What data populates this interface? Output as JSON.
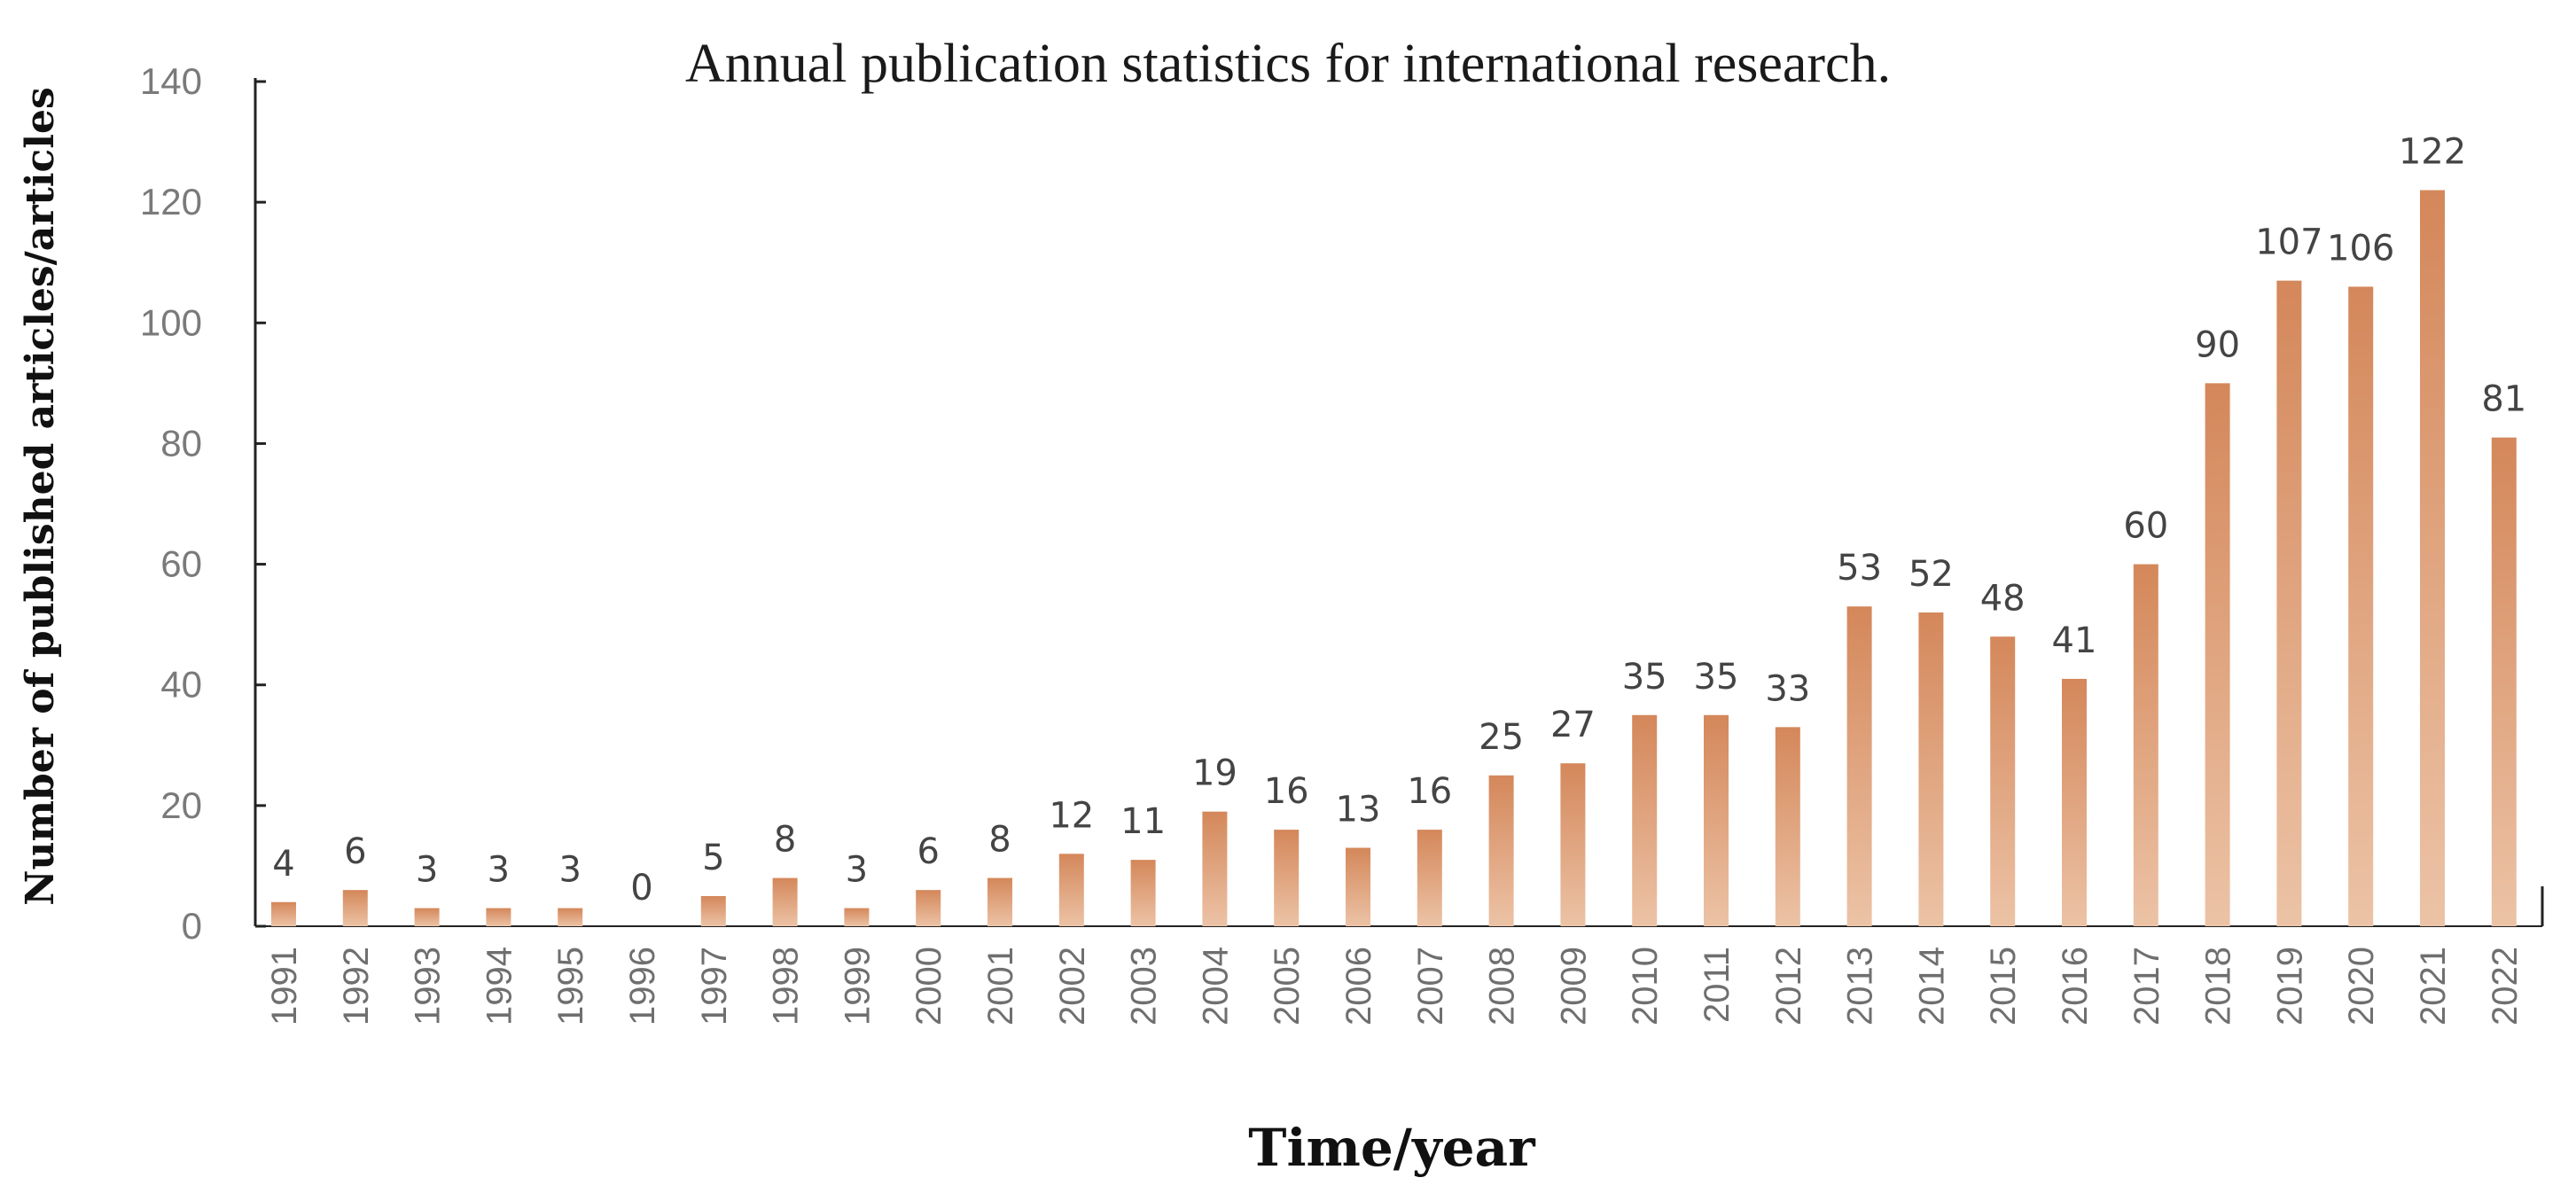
{
  "chart_data": {
    "type": "bar",
    "title": "Annual publication statistics for international research.",
    "xlabel": "Time/year",
    "ylabel": "Number of published articles/articles",
    "ylim": [
      0,
      140
    ],
    "yticks": [
      0,
      20,
      40,
      60,
      80,
      100,
      120,
      140
    ],
    "grid": false,
    "legend": "none",
    "categories": [
      "1991",
      "1992",
      "1993",
      "1994",
      "1995",
      "1996",
      "1997",
      "1998",
      "1999",
      "2000",
      "2001",
      "2002",
      "2003",
      "2004",
      "2005",
      "2006",
      "2007",
      "2008",
      "2009",
      "2010",
      "2011",
      "2012",
      "2013",
      "2014",
      "2015",
      "2016",
      "2017",
      "2018",
      "2019",
      "2020",
      "2021",
      "2022"
    ],
    "values": [
      4,
      6,
      3,
      3,
      3,
      0,
      5,
      8,
      3,
      6,
      8,
      12,
      11,
      19,
      16,
      13,
      16,
      25,
      27,
      35,
      35,
      33,
      53,
      52,
      48,
      41,
      60,
      90,
      107,
      106,
      122,
      81
    ],
    "bar_color_top": "#d4875a",
    "bar_color_bottom": "#ecc3a6",
    "axis_color": "#222222"
  }
}
